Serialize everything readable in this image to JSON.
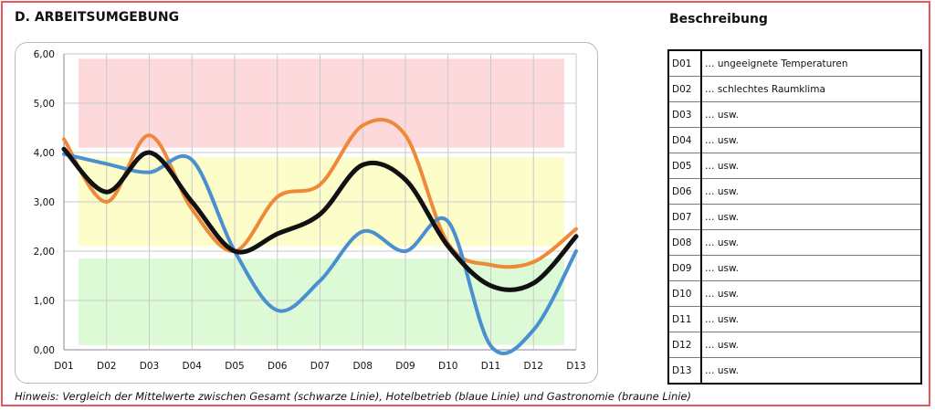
{
  "section_title": "D. ARBEITSUMGEBUNG",
  "description_title": "Beschreibung",
  "note": "Hinweis: Vergleich der Mittelwerte  zwischen Gesamt (schwarze Linie), Hotelbetrieb (blaue Linie) und Gastronomie (braune Linie)",
  "descriptions": [
    {
      "code": "D01",
      "text": "… ungeeignete Temperaturen"
    },
    {
      "code": "D02",
      "text": "… schlechtes Raumklima"
    },
    {
      "code": "D03",
      "text": "… usw."
    },
    {
      "code": "D04",
      "text": "… usw."
    },
    {
      "code": "D05",
      "text": "… usw."
    },
    {
      "code": "D06",
      "text": "… usw."
    },
    {
      "code": "D07",
      "text": "… usw."
    },
    {
      "code": "D08",
      "text": "… usw."
    },
    {
      "code": "D09",
      "text": "… usw."
    },
    {
      "code": "D10",
      "text": "… usw."
    },
    {
      "code": "D11",
      "text": "… usw."
    },
    {
      "code": "D12",
      "text": "… usw."
    },
    {
      "code": "D13",
      "text": "… usw."
    }
  ],
  "chart_data": {
    "type": "line",
    "title": "",
    "xlabel": "",
    "ylabel": "",
    "categories": [
      "D01",
      "D02",
      "D03",
      "D04",
      "D05",
      "D06",
      "D07",
      "D08",
      "D09",
      "D10",
      "D11",
      "D12",
      "D13"
    ],
    "y_ticks": [
      "0,00",
      "1,00",
      "2,00",
      "3,00",
      "4,00",
      "5,00",
      "6,00"
    ],
    "ylim": [
      0,
      6
    ],
    "grid": true,
    "legend": "none",
    "smooth": true,
    "bands": [
      {
        "from": 4.1,
        "to": 5.9,
        "color": "#fdd9dc"
      },
      {
        "from": 2.1,
        "to": 3.9,
        "color": "#fdfdc9"
      },
      {
        "from": 0.1,
        "to": 1.85,
        "color": "#dcfad6"
      }
    ],
    "series": [
      {
        "key": "gastronomie",
        "color": "#f0883a",
        "width": 4,
        "values": [
          4.27,
          3.0,
          4.35,
          2.85,
          2.0,
          3.1,
          3.35,
          4.55,
          4.35,
          2.15,
          1.72,
          1.78,
          2.45
        ]
      },
      {
        "key": "hotelbetrieb",
        "color": "#4a8fd0",
        "width": 4,
        "values": [
          3.97,
          3.77,
          3.6,
          3.85,
          2.0,
          0.8,
          1.4,
          2.4,
          2.0,
          2.6,
          0.08,
          0.4,
          2.0
        ]
      },
      {
        "key": "gesamt",
        "color": "#111111",
        "width": 5,
        "values": [
          4.07,
          3.2,
          4.0,
          3.0,
          2.0,
          2.35,
          2.75,
          3.75,
          3.45,
          2.1,
          1.3,
          1.35,
          2.3
        ]
      }
    ]
  }
}
